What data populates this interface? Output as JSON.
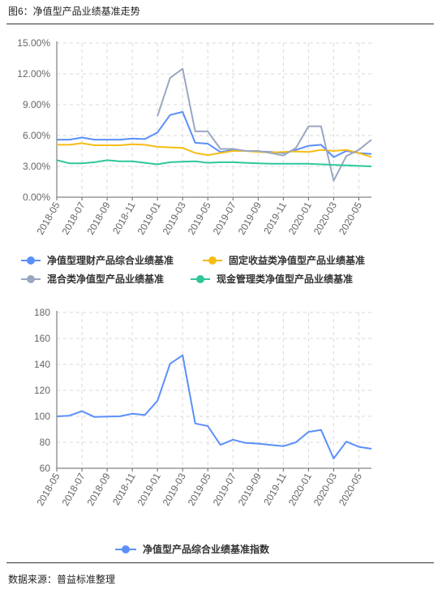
{
  "header": {
    "title": "图6：净值型产品业绩基准走势"
  },
  "footer": {
    "source": "数据来源：普益标准整理"
  },
  "chart_data": [
    {
      "type": "line",
      "x": [
        "2018-05",
        "2018-06",
        "2018-07",
        "2018-08",
        "2018-09",
        "2018-10",
        "2018-11",
        "2018-12",
        "2019-01",
        "2019-02",
        "2019-03",
        "2019-04",
        "2019-05",
        "2019-06",
        "2019-07",
        "2019-08",
        "2019-09",
        "2019-10",
        "2019-11",
        "2019-12",
        "2020-01",
        "2020-02",
        "2020-03",
        "2020-04",
        "2020-05",
        "2020-06"
      ],
      "xticks": [
        "2018-05",
        "2018-07",
        "2018-09",
        "2018-11",
        "2019-01",
        "2019-03",
        "2019-05",
        "2019-07",
        "2019-09",
        "2019-11",
        "2020-01",
        "2020-03",
        "2020-05"
      ],
      "ylim": [
        0,
        15
      ],
      "yticks": [
        "0.00%",
        "3.00%",
        "6.00%",
        "9.00%",
        "12.00%",
        "15.00%"
      ],
      "grid": true,
      "legend_position": "bottom",
      "series": [
        {
          "name": "净值型理财产品综合业绩基准",
          "color": "#5b8ff9",
          "values": [
            5.6,
            5.6,
            5.8,
            5.6,
            5.6,
            5.6,
            5.7,
            5.65,
            6.3,
            8.0,
            8.3,
            5.3,
            5.2,
            4.4,
            4.6,
            4.5,
            4.45,
            4.4,
            4.3,
            4.6,
            5.0,
            5.1,
            3.9,
            4.5,
            4.3,
            4.2
          ]
        },
        {
          "name": "固定收益类净值型产品业绩基准",
          "color": "#f6bd16",
          "values": [
            5.1,
            5.1,
            5.25,
            5.05,
            5.05,
            5.05,
            5.15,
            5.1,
            4.9,
            4.85,
            4.8,
            4.3,
            4.1,
            4.3,
            4.5,
            4.5,
            4.4,
            4.35,
            4.4,
            4.45,
            4.4,
            4.6,
            4.5,
            4.6,
            4.3,
            3.9
          ]
        },
        {
          "name": "混合类净值型产品业绩基准",
          "color": "#9aa7c1",
          "values": [
            null,
            null,
            null,
            null,
            null,
            null,
            null,
            null,
            7.9,
            11.6,
            12.5,
            6.4,
            6.4,
            4.7,
            4.7,
            4.5,
            4.5,
            4.3,
            4.05,
            4.8,
            6.9,
            6.9,
            1.6,
            4.0,
            4.6,
            5.6
          ]
        },
        {
          "name": "现金管理类净值型产品业绩基准",
          "color": "#2fc79a",
          "values": [
            3.6,
            3.3,
            3.3,
            3.4,
            3.6,
            3.5,
            3.5,
            3.35,
            3.2,
            3.4,
            3.45,
            3.5,
            3.35,
            3.4,
            3.4,
            3.35,
            3.3,
            3.25,
            3.25,
            3.25,
            3.25,
            3.2,
            3.15,
            3.1,
            3.05,
            3.0
          ]
        }
      ]
    },
    {
      "type": "line",
      "x": [
        "2018-05",
        "2018-06",
        "2018-07",
        "2018-08",
        "2018-09",
        "2018-10",
        "2018-11",
        "2018-12",
        "2019-01",
        "2019-02",
        "2019-03",
        "2019-04",
        "2019-05",
        "2019-06",
        "2019-07",
        "2019-08",
        "2019-09",
        "2019-10",
        "2019-11",
        "2019-12",
        "2020-01",
        "2020-02",
        "2020-03",
        "2020-04",
        "2020-05",
        "2020-06"
      ],
      "xticks": [
        "2018-05",
        "2018-07",
        "2018-09",
        "2018-11",
        "2019-01",
        "2019-03",
        "2019-05",
        "2019-07",
        "2019-09",
        "2019-11",
        "2020-01",
        "2020-03",
        "2020-05"
      ],
      "ylim": [
        60,
        180
      ],
      "yticks": [
        "60",
        "80",
        "100",
        "120",
        "140",
        "160",
        "180"
      ],
      "grid": true,
      "legend_position": "bottom",
      "series": [
        {
          "name": "净值型产品综合业绩基准指数",
          "color": "#5b8ff9",
          "values": [
            100,
            100.5,
            104,
            99.5,
            99.8,
            100,
            102,
            101,
            112,
            140.5,
            147,
            94.5,
            92.5,
            78,
            82,
            79.5,
            79,
            78,
            77,
            80,
            88,
            89.5,
            67.5,
            80.5,
            76.5,
            75
          ]
        }
      ]
    }
  ]
}
